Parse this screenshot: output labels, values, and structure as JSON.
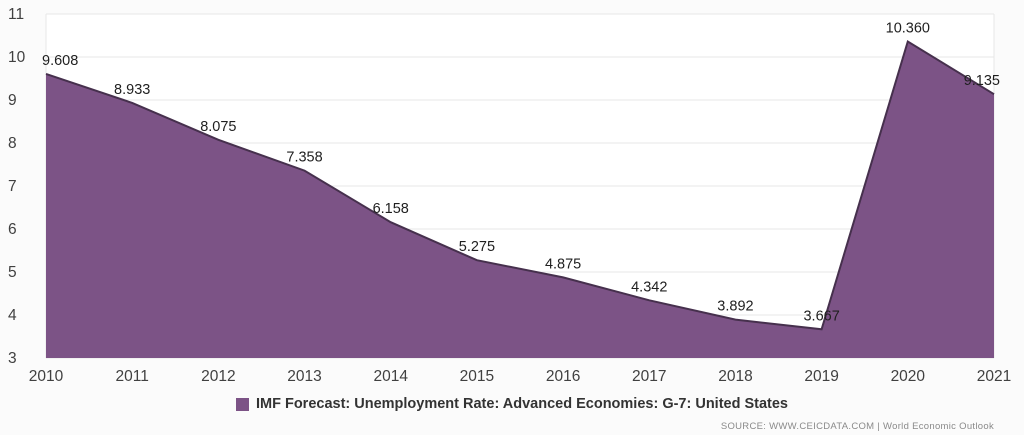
{
  "chart_data": {
    "type": "area",
    "categories": [
      "2010",
      "2011",
      "2012",
      "2013",
      "2014",
      "2015",
      "2016",
      "2017",
      "2018",
      "2019",
      "2020",
      "2021"
    ],
    "values": [
      9.608,
      8.933,
      8.075,
      7.358,
      6.158,
      5.275,
      4.875,
      4.342,
      3.892,
      3.667,
      10.36,
      9.135
    ],
    "value_labels": [
      "9.608",
      "8.933",
      "8.075",
      "7.358",
      "6.158",
      "5.275",
      "4.875",
      "4.342",
      "3.892",
      "3.667",
      "10.360",
      "9.135"
    ],
    "title": "",
    "xlabel": "",
    "ylabel": "",
    "ylim": [
      3,
      11
    ],
    "yticks": [
      11,
      10,
      9,
      8,
      7,
      6,
      5,
      4,
      3
    ],
    "grid": true,
    "legend_position": "bottom",
    "legend": "IMF Forecast: Unemployment Rate: Advanced Economies: G-7: United States",
    "source": "SOURCE: WWW.CEICDATA.COM | World Economic Outlook",
    "colors": {
      "area_fill": "#7c5386",
      "area_stroke": "#46304d",
      "grid_line": "#e7e7e7",
      "axis_text": "#404040",
      "label_text": "#1f1f1f",
      "legend_text": "#333333",
      "source_text": "#8a8a8a",
      "background": "#fbfbfb",
      "plot_background": "#ffffff"
    }
  }
}
